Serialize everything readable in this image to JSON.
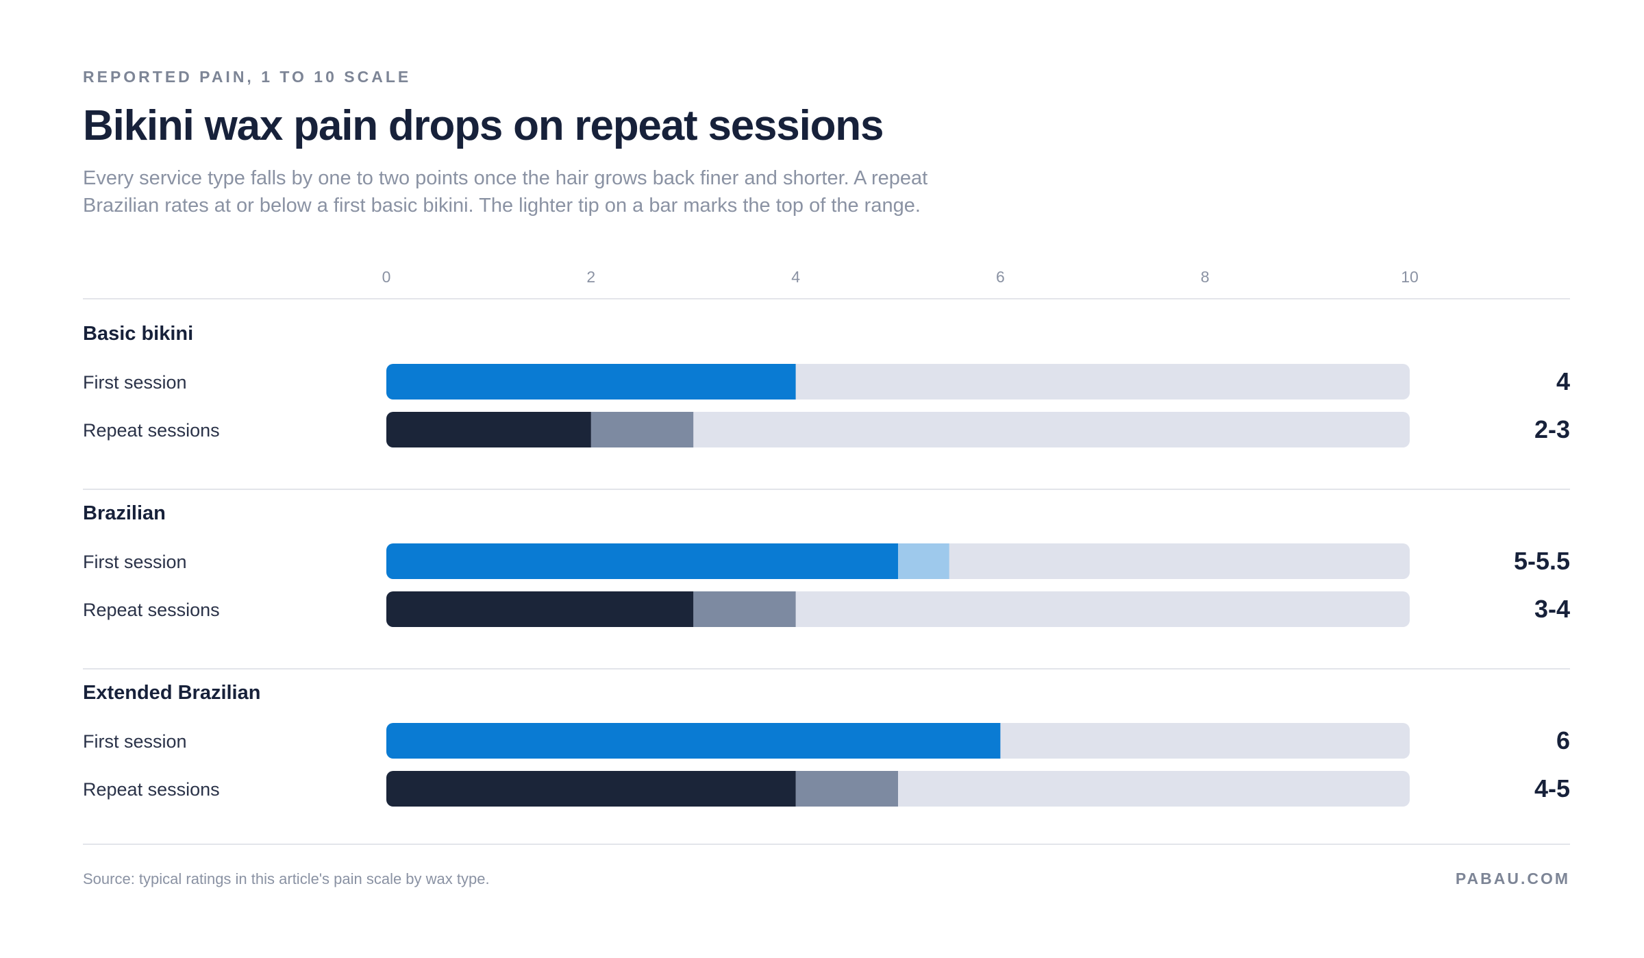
{
  "header": {
    "eyebrow": "REPORTED PAIN, 1 TO 10 SCALE",
    "title": "Bikini wax pain drops on repeat sessions",
    "subtitle": "Every service type falls by one to two points once the hair grows back finer and shorter. A repeat Brazilian rates at or below a first basic bikini. The lighter tip on a bar marks the top of the range."
  },
  "footer": {
    "source": "Source: typical ratings in this article's pain scale by wax type.",
    "brand": "PABAU.COM"
  },
  "colors": {
    "first_bar": "#0a7bd3",
    "first_tip": "#9ec9ec",
    "repeat_bar": "#1b2539",
    "repeat_tip": "#7d8aa1",
    "track": "#dfe2ec",
    "gridline": "#e3e5ea",
    "tick_label": "#8a92a3",
    "label": "#2a3248",
    "value": "#17213a"
  },
  "chart_data": {
    "type": "bar",
    "orientation": "horizontal",
    "xlim": [
      0,
      10
    ],
    "xticks": [
      0,
      2,
      4,
      6,
      8,
      10
    ],
    "xtick_labels": [
      "0",
      "2",
      "4",
      "6",
      "8",
      "10"
    ],
    "grid": false,
    "groups": [
      {
        "name": "Basic bikini",
        "rows": [
          {
            "label": "First session",
            "kind": "first",
            "low": 4,
            "high": 4,
            "value_label": "4"
          },
          {
            "label": "Repeat sessions",
            "kind": "repeat",
            "low": 2,
            "high": 3,
            "value_label": "2-3"
          }
        ]
      },
      {
        "name": "Brazilian",
        "rows": [
          {
            "label": "First session",
            "kind": "first",
            "low": 5,
            "high": 5.5,
            "value_label": "5-5.5"
          },
          {
            "label": "Repeat sessions",
            "kind": "repeat",
            "low": 3,
            "high": 4,
            "value_label": "3-4"
          }
        ]
      },
      {
        "name": "Extended Brazilian",
        "rows": [
          {
            "label": "First session",
            "kind": "first",
            "low": 6,
            "high": 6,
            "value_label": "6"
          },
          {
            "label": "Repeat sessions",
            "kind": "repeat",
            "low": 4,
            "high": 5,
            "value_label": "4-5"
          }
        ]
      }
    ]
  }
}
